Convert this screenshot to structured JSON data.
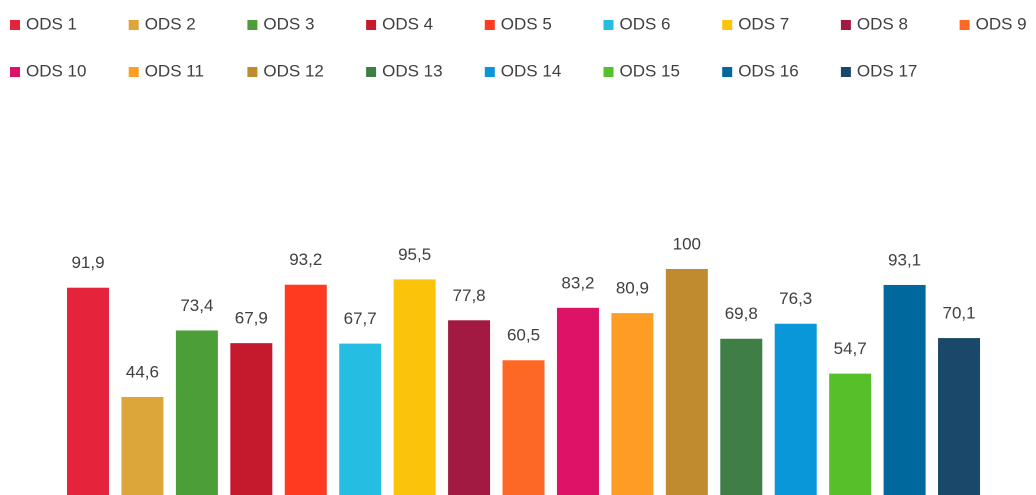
{
  "chart_data": {
    "type": "bar",
    "ylim": [
      0,
      100
    ],
    "series": [
      {
        "name": "ODS 1",
        "color": "#e5243b",
        "values": [
          91.9
        ],
        "value_labels": [
          "91,9"
        ]
      },
      {
        "name": "ODS 2",
        "color": "#dda63a",
        "values": [
          44.6
        ],
        "value_labels": [
          "44,6"
        ]
      },
      {
        "name": "ODS 3",
        "color": "#4c9f38",
        "values": [
          73.4
        ],
        "value_labels": [
          "73,4"
        ]
      },
      {
        "name": "ODS 4",
        "color": "#c5192d",
        "values": [
          67.9
        ],
        "value_labels": [
          "67,9"
        ]
      },
      {
        "name": "ODS 5",
        "color": "#ff3a21",
        "values": [
          93.2
        ],
        "value_labels": [
          "93,2"
        ]
      },
      {
        "name": "ODS 6",
        "color": "#26bde2",
        "values": [
          67.7
        ],
        "value_labels": [
          "67,7"
        ]
      },
      {
        "name": "ODS 7",
        "color": "#fcc30b",
        "values": [
          95.5
        ],
        "value_labels": [
          "95,5"
        ]
      },
      {
        "name": "ODS 8",
        "color": "#a21942",
        "values": [
          77.8
        ],
        "value_labels": [
          "77,8"
        ]
      },
      {
        "name": "ODS 9",
        "color": "#fd6925",
        "values": [
          60.5
        ],
        "value_labels": [
          "60,5"
        ]
      },
      {
        "name": "ODS 10",
        "color": "#dd1367",
        "values": [
          83.2
        ],
        "value_labels": [
          "83,2"
        ]
      },
      {
        "name": "ODS 11",
        "color": "#fd9d24",
        "values": [
          80.9
        ],
        "value_labels": [
          "80,9"
        ]
      },
      {
        "name": "ODS 12",
        "color": "#bf8b2e",
        "values": [
          100
        ]
      },
      {
        "name": "ODS 13",
        "color": "#3f7e44",
        "values": [
          69.8
        ],
        "value_labels": [
          "69,8"
        ]
      },
      {
        "name": "ODS 14",
        "color": "#0a97d9",
        "values": [
          76.3
        ],
        "value_labels": [
          "76,3"
        ]
      },
      {
        "name": "ODS 15",
        "color": "#56c02b",
        "values": [
          54.7
        ],
        "value_labels": [
          "54,7"
        ]
      },
      {
        "name": "ODS 16",
        "color": "#00689d",
        "values": [
          93.1
        ],
        "value_labels": [
          "93,1"
        ]
      },
      {
        "name": "ODS 17",
        "color": "#19486a",
        "values": [
          70.1
        ],
        "value_labels": [
          "70,1"
        ]
      }
    ]
  }
}
